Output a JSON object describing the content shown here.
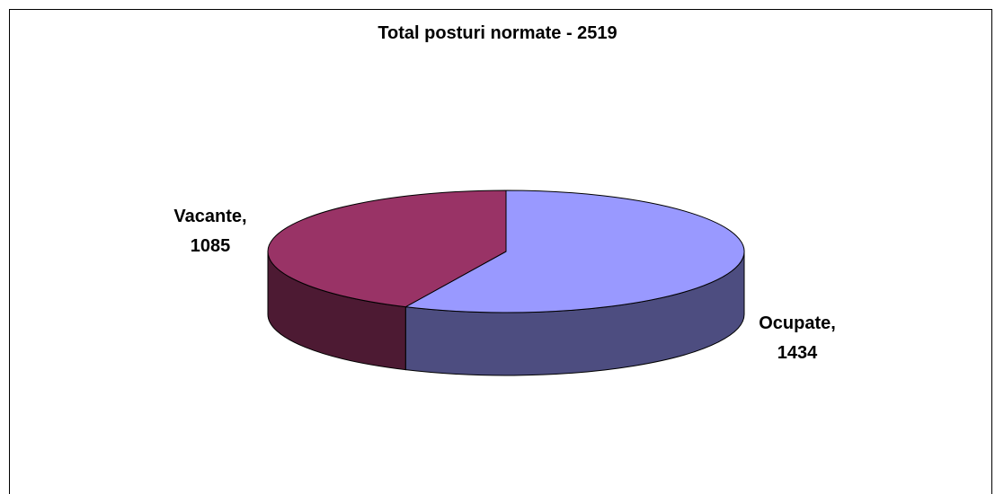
{
  "chart_data": {
    "type": "pie",
    "title": "Total posturi normate - 2519",
    "slices": [
      {
        "label": "Ocupate",
        "value": 1434,
        "value_text": "1434",
        "color": "#9999FF",
        "side_color": "#4D4D80"
      },
      {
        "label": "Vacante",
        "value": 1085,
        "value_text": "1085",
        "color": "#993366",
        "side_color": "#4D1A33"
      }
    ],
    "three_d": true,
    "legend": "none"
  }
}
